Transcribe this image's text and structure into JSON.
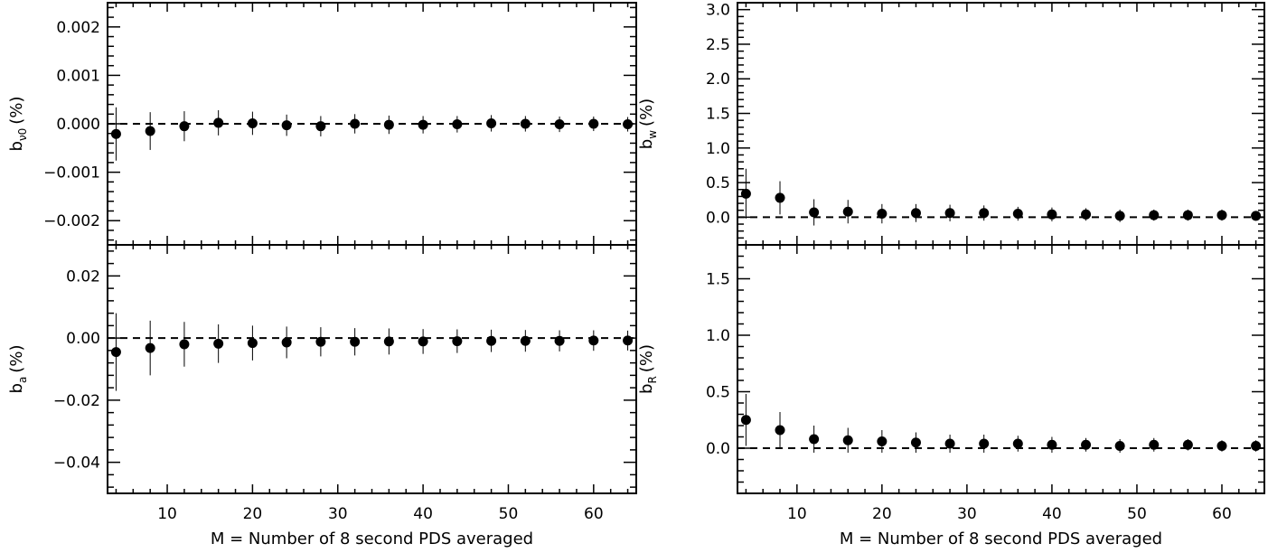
{
  "chart_data": [
    {
      "type": "scatter",
      "panel": "top-left",
      "ylabel_base": "b",
      "ylabel_sub": "ν0",
      "ylabel_unit": "(%)",
      "ylim": [
        -0.0025,
        0.0025
      ],
      "yticks": [
        -0.002,
        -0.001,
        0.0,
        0.001,
        0.002
      ],
      "ytick_labels": [
        "−0.002",
        "−0.001",
        "0.000",
        "0.001",
        "0.002"
      ],
      "xlim": [
        3,
        65
      ],
      "x": [
        4,
        8,
        12,
        16,
        20,
        24,
        28,
        32,
        36,
        40,
        44,
        48,
        52,
        56,
        60,
        64
      ],
      "y": [
        -0.00021,
        -0.00015,
        -5e-05,
        2e-05,
        1e-05,
        -3e-05,
        -5e-05,
        0.0,
        -2e-05,
        -2e-05,
        -1e-05,
        1e-05,
        0.0,
        -1e-05,
        0.0,
        -1e-05
      ],
      "yerr": [
        0.00055,
        0.00039,
        0.00031,
        0.00026,
        0.00024,
        0.00022,
        0.00021,
        0.0002,
        0.00019,
        0.00018,
        0.00017,
        0.00017,
        0.00016,
        0.00016,
        0.00015,
        0.00015
      ],
      "reference_line": 0
    },
    {
      "type": "scatter",
      "panel": "bottom-left",
      "ylabel_base": "b",
      "ylabel_sub": "a",
      "ylabel_unit": "(%)",
      "ylim": [
        -0.05,
        0.03
      ],
      "yticks": [
        -0.04,
        -0.02,
        0.0,
        0.02
      ],
      "ytick_labels": [
        "−0.04",
        "−0.02",
        "0.00",
        "0.02"
      ],
      "xlabel": "M = Number of 8 second PDS averaged",
      "xlim": [
        3,
        65
      ],
      "xticks": [
        10,
        20,
        30,
        40,
        50,
        60
      ],
      "xtick_labels": [
        "10",
        "20",
        "30",
        "40",
        "50",
        "60"
      ],
      "x": [
        4,
        8,
        12,
        16,
        20,
        24,
        28,
        32,
        36,
        40,
        44,
        48,
        52,
        56,
        60,
        64
      ],
      "y": [
        -0.0045,
        -0.0032,
        -0.002,
        -0.0018,
        -0.0016,
        -0.0014,
        -0.0012,
        -0.0012,
        -0.0011,
        -0.0011,
        -0.001,
        -0.0009,
        -0.0009,
        -0.0009,
        -0.0008,
        -0.0008
      ],
      "yerr": [
        0.0125,
        0.0088,
        0.0072,
        0.0062,
        0.0056,
        0.0051,
        0.0047,
        0.0044,
        0.0042,
        0.004,
        0.0038,
        0.0036,
        0.0035,
        0.0034,
        0.0033,
        0.0032
      ],
      "reference_line": 0
    },
    {
      "type": "scatter",
      "panel": "top-right",
      "ylabel_base": "b",
      "ylabel_sub": "w",
      "ylabel_unit": "(%)",
      "ylim": [
        -0.4,
        3.1
      ],
      "yticks": [
        0.0,
        0.5,
        1.0,
        1.5,
        2.0,
        2.5,
        3.0
      ],
      "ytick_labels": [
        "0.0",
        "0.5",
        "1.0",
        "1.5",
        "2.0",
        "2.5",
        "3.0"
      ],
      "xlim": [
        3,
        65
      ],
      "x": [
        4,
        8,
        12,
        16,
        20,
        24,
        28,
        32,
        36,
        40,
        44,
        48,
        52,
        56,
        60,
        64
      ],
      "y": [
        0.34,
        0.28,
        0.07,
        0.08,
        0.05,
        0.06,
        0.06,
        0.06,
        0.05,
        0.04,
        0.04,
        0.02,
        0.03,
        0.03,
        0.03,
        0.02
      ],
      "yerr": [
        0.36,
        0.24,
        0.19,
        0.17,
        0.14,
        0.13,
        0.12,
        0.11,
        0.1,
        0.1,
        0.09,
        0.09,
        0.08,
        0.08,
        0.08,
        0.07
      ],
      "reference_line": 0
    },
    {
      "type": "scatter",
      "panel": "bottom-right",
      "ylabel_base": "b",
      "ylabel_sub": "R",
      "ylabel_unit": "(%)",
      "ylim": [
        -0.4,
        1.8
      ],
      "yticks": [
        0.0,
        0.5,
        1.0,
        1.5
      ],
      "ytick_labels": [
        "0.0",
        "0.5",
        "1.0",
        "1.5"
      ],
      "xlabel": "M = Number of 8 second PDS averaged",
      "xlim": [
        3,
        65
      ],
      "xticks": [
        10,
        20,
        30,
        40,
        50,
        60
      ],
      "xtick_labels": [
        "10",
        "20",
        "30",
        "40",
        "50",
        "60"
      ],
      "x": [
        4,
        8,
        12,
        16,
        20,
        24,
        28,
        32,
        36,
        40,
        44,
        48,
        52,
        56,
        60,
        64
      ],
      "y": [
        0.25,
        0.16,
        0.08,
        0.07,
        0.06,
        0.05,
        0.04,
        0.04,
        0.04,
        0.03,
        0.03,
        0.02,
        0.03,
        0.03,
        0.02,
        0.02
      ],
      "yerr": [
        0.23,
        0.16,
        0.12,
        0.11,
        0.1,
        0.09,
        0.08,
        0.08,
        0.07,
        0.07,
        0.06,
        0.06,
        0.06,
        0.05,
        0.05,
        0.05
      ],
      "reference_line": 0
    }
  ]
}
